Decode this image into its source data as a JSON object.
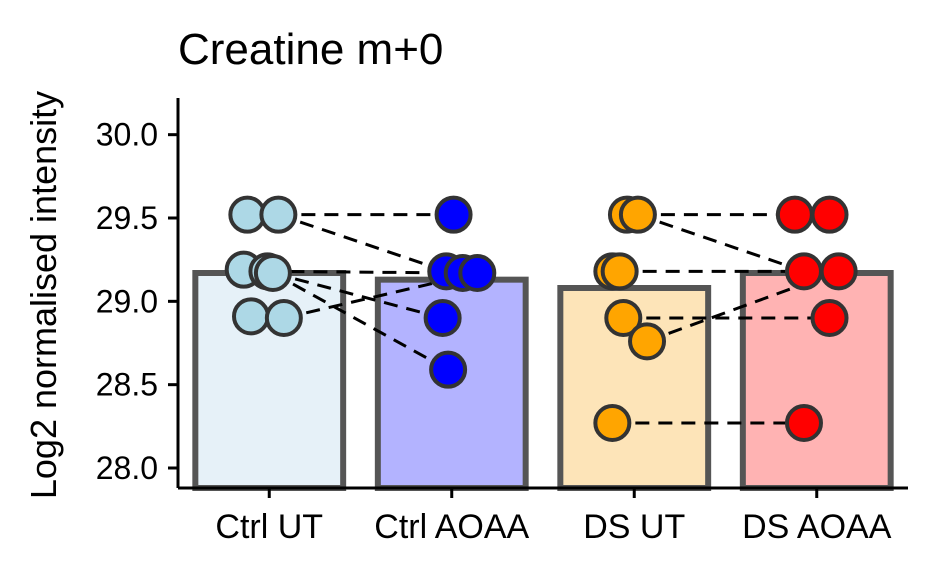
{
  "chart_data": {
    "type": "bar",
    "title": "Creatine m+0",
    "xlabel": "",
    "ylabel": "Log2 normalised intensity",
    "ylim": [
      27.88,
      30.22
    ],
    "yticks": [
      "28.0",
      "28.5",
      "29.0",
      "29.5",
      "30.0"
    ],
    "ytick_values": [
      28.0,
      28.5,
      29.0,
      29.5,
      30.0
    ],
    "categories": [
      "Ctrl UT",
      "Ctrl AOAA",
      "DS UT",
      "DS AOAA"
    ],
    "values": [
      29.17,
      29.13,
      29.08,
      29.17
    ],
    "bar_colors": [
      "#e6f1f8",
      "#b3b3ff",
      "#fde4b8",
      "#ffb3b3"
    ],
    "point_colors": [
      "#add8e6",
      "#0000ff",
      "#ffa500",
      "#ff0000"
    ],
    "bar_outline": "#555555",
    "grid": false,
    "points": [
      [
        {
          "y": 29.52,
          "dx": -0.12
        },
        {
          "y": 29.52,
          "dx": 0.05
        },
        {
          "y": 29.19,
          "dx": -0.14
        },
        {
          "y": 29.18,
          "dx": -0.01
        },
        {
          "y": 29.17,
          "dx": 0.02
        },
        {
          "y": 28.91,
          "dx": -0.1
        },
        {
          "y": 28.9,
          "dx": 0.08
        }
      ],
      [
        {
          "y": 29.52,
          "dx": 0.01
        },
        {
          "y": 29.18,
          "dx": -0.03
        },
        {
          "y": 29.17,
          "dx": 0.06
        },
        {
          "y": 29.17,
          "dx": 0.14
        },
        {
          "y": 28.9,
          "dx": -0.05
        },
        {
          "y": 28.59,
          "dx": -0.02
        }
      ],
      [
        {
          "y": 29.52,
          "dx": -0.04
        },
        {
          "y": 29.52,
          "dx": 0.02
        },
        {
          "y": 29.18,
          "dx": -0.12
        },
        {
          "y": 29.18,
          "dx": -0.08
        },
        {
          "y": 28.9,
          "dx": -0.06
        },
        {
          "y": 28.76,
          "dx": 0.07
        },
        {
          "y": 28.27,
          "dx": -0.12
        }
      ],
      [
        {
          "y": 29.52,
          "dx": -0.12
        },
        {
          "y": 29.52,
          "dx": 0.07
        },
        {
          "y": 29.18,
          "dx": -0.07
        },
        {
          "y": 29.18,
          "dx": 0.12
        },
        {
          "y": 28.9,
          "dx": 0.07
        },
        {
          "y": 28.27,
          "dx": -0.07
        }
      ]
    ],
    "pairs": [
      [
        {
          "g": 0,
          "i": 1
        },
        {
          "g": 1,
          "i": 0
        }
      ],
      [
        {
          "g": 0,
          "i": 1
        },
        {
          "g": 1,
          "i": 1
        }
      ],
      [
        {
          "g": 0,
          "i": 3
        },
        {
          "g": 1,
          "i": 2
        }
      ],
      [
        {
          "g": 0,
          "i": 4
        },
        {
          "g": 1,
          "i": 4
        }
      ],
      [
        {
          "g": 0,
          "i": 4
        },
        {
          "g": 1,
          "i": 5
        }
      ],
      [
        {
          "g": 0,
          "i": 6
        },
        {
          "g": 1,
          "i": 3
        }
      ],
      [
        {
          "g": 2,
          "i": 1
        },
        {
          "g": 3,
          "i": 0
        }
      ],
      [
        {
          "g": 2,
          "i": 1
        },
        {
          "g": 3,
          "i": 2
        }
      ],
      [
        {
          "g": 2,
          "i": 3
        },
        {
          "g": 3,
          "i": 2
        }
      ],
      [
        {
          "g": 2,
          "i": 4
        },
        {
          "g": 3,
          "i": 4
        }
      ],
      [
        {
          "g": 2,
          "i": 5
        },
        {
          "g": 3,
          "i": 3
        }
      ],
      [
        {
          "g": 2,
          "i": 6
        },
        {
          "g": 3,
          "i": 5
        }
      ]
    ]
  }
}
